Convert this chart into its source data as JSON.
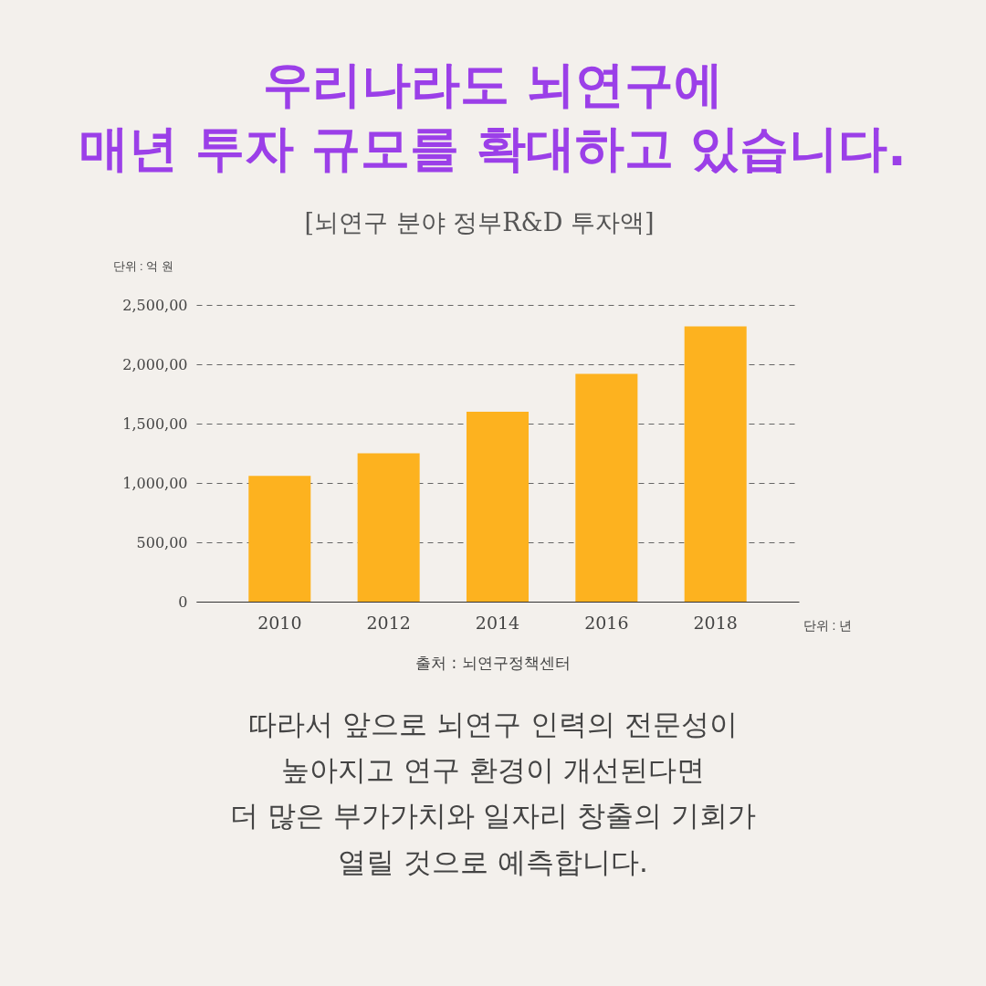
{
  "chart_data": {
    "type": "bar",
    "title": "우리나라도 뇌연구에\n매년 투자 규모를 확대하고 있습니다.",
    "subtitle": "[뇌연구 분야 정부R&D 투자액]",
    "xlabel": "단위 : 년",
    "ylabel": "단위 : 억 원",
    "categories": [
      "2010",
      "2012",
      "2014",
      "2016",
      "2018"
    ],
    "values": [
      1060,
      1250,
      1600,
      1920,
      2320
    ],
    "color": "#fdb21f",
    "ylim": [
      0,
      2500
    ],
    "yticks": [
      {
        "value": 0,
        "label": "0"
      },
      {
        "value": 500,
        "label": "500,00"
      },
      {
        "value": 1000,
        "label": "1,000,00"
      },
      {
        "value": 1500,
        "label": "1,500,00"
      },
      {
        "value": 2000,
        "label": "2,000,00"
      },
      {
        "value": 2500,
        "label": "2,500,00"
      }
    ],
    "grid": "y",
    "annotations": [
      "출처 : 뇌연구정책센터",
      "따라서 앞으로 뇌연구 인력의 전문성이\n높아지고 연구 환경이 개선된다면\n더 많은 부가가치와 일자리 창출의 기회가\n열릴 것으로 예측합니다."
    ]
  }
}
